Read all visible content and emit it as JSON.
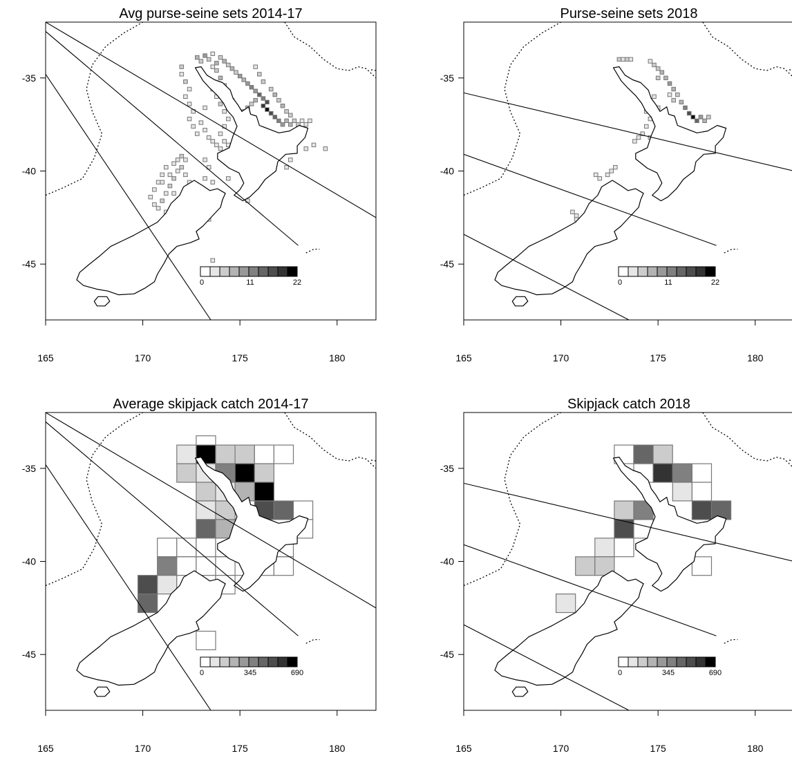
{
  "figure": {
    "panels": [
      {
        "id": "ps-sets-avg",
        "title": "Avg purse-seine sets 2014-17",
        "legend": {
          "min": "0",
          "mid": "11",
          "max": "22"
        },
        "lines": [
          [
            [
              165.0,
              -32.0
            ],
            [
              182.0,
              -42.5
            ]
          ],
          [
            [
              165.0,
              -32.5
            ],
            [
              178.0,
              -44.0
            ]
          ],
          [
            [
              165.0,
              -34.8
            ],
            [
              173.5,
              -48.0
            ]
          ]
        ]
      },
      {
        "id": "ps-sets-2018",
        "title": "Purse-seine sets 2018",
        "legend": {
          "min": "0",
          "mid": "11",
          "max": "22"
        },
        "lines": [
          [
            [
              165.0,
              -35.8
            ],
            [
              182.0,
              -40.0
            ]
          ],
          [
            [
              165.0,
              -39.1
            ],
            [
              178.0,
              -44.0
            ]
          ],
          [
            [
              165.0,
              -43.4
            ],
            [
              173.5,
              -48.0
            ]
          ]
        ]
      },
      {
        "id": "skj-catch-avg",
        "title": "Average skipjack catch 2014-17",
        "legend": {
          "min": "0",
          "mid": "345",
          "max": "690"
        },
        "lines": [
          [
            [
              165.0,
              -32.0
            ],
            [
              182.0,
              -42.5
            ]
          ],
          [
            [
              165.0,
              -32.5
            ],
            [
              178.0,
              -44.0
            ]
          ],
          [
            [
              165.0,
              -34.8
            ],
            [
              173.5,
              -48.0
            ]
          ]
        ]
      },
      {
        "id": "skj-catch-2018",
        "title": "Skipjack catch 2018",
        "legend": {
          "min": "0",
          "mid": "345",
          "max": "690"
        },
        "lines": [
          [
            [
              165.0,
              -35.8
            ],
            [
              182.0,
              -40.0
            ]
          ],
          [
            [
              165.0,
              -39.1
            ],
            [
              178.0,
              -44.0
            ]
          ],
          [
            [
              165.0,
              -43.4
            ],
            [
              173.5,
              -48.0
            ]
          ]
        ]
      }
    ],
    "x_ticks": [
      "165",
      "170",
      "175",
      "180"
    ],
    "y_ticks": [
      "-35",
      "-40",
      "-45"
    ],
    "map_extent": {
      "lon": [
        165,
        182
      ],
      "lat": [
        -48,
        -32
      ]
    },
    "grey_ramp": [
      "#ffffff",
      "#e6e6e6",
      "#cccccc",
      "#b3b3b3",
      "#999999",
      "#808080",
      "#666666",
      "#4d4d4d",
      "#333333",
      "#000000"
    ],
    "skipjack_avg_cells": [
      [
        173.25,
        -33.75,
        0
      ],
      [
        172.25,
        -34.25,
        1
      ],
      [
        173.25,
        -34.25,
        9
      ],
      [
        174.25,
        -34.25,
        2
      ],
      [
        175.25,
        -34.25,
        2
      ],
      [
        176.25,
        -34.25,
        0
      ],
      [
        177.25,
        -34.25,
        0
      ],
      [
        172.25,
        -35.25,
        2
      ],
      [
        173.25,
        -35.25,
        1
      ],
      [
        174.25,
        -35.25,
        5
      ],
      [
        175.25,
        -35.25,
        9
      ],
      [
        176.25,
        -35.25,
        2
      ],
      [
        173.25,
        -36.25,
        2
      ],
      [
        174.25,
        -36.25,
        1
      ],
      [
        175.25,
        -36.25,
        3
      ],
      [
        176.25,
        -36.25,
        9
      ],
      [
        173.25,
        -37.25,
        1
      ],
      [
        174.25,
        -37.25,
        2
      ],
      [
        176.25,
        -37.25,
        7
      ],
      [
        177.25,
        -37.25,
        6
      ],
      [
        178.25,
        -37.25,
        0
      ],
      [
        173.25,
        -38.25,
        6
      ],
      [
        174.25,
        -38.25,
        3
      ],
      [
        178.25,
        -38.25,
        0
      ],
      [
        171.25,
        -39.25,
        0
      ],
      [
        172.25,
        -39.25,
        0
      ],
      [
        173.25,
        -39.25,
        0
      ],
      [
        174.25,
        -39.25,
        0
      ],
      [
        177.25,
        -39.25,
        0
      ],
      [
        171.25,
        -40.25,
        5
      ],
      [
        172.25,
        -40.25,
        0
      ],
      [
        173.25,
        -40.25,
        0
      ],
      [
        174.25,
        -40.25,
        0
      ],
      [
        175.25,
        -40.25,
        0
      ],
      [
        176.25,
        -40.25,
        0
      ],
      [
        177.25,
        -40.25,
        0
      ],
      [
        170.25,
        -41.25,
        7
      ],
      [
        171.25,
        -41.25,
        1
      ],
      [
        172.25,
        -41.25,
        0
      ],
      [
        173.25,
        -41.25,
        0
      ],
      [
        174.25,
        -41.25,
        0
      ],
      [
        170.25,
        -42.25,
        6
      ],
      [
        171.25,
        -42.25,
        0
      ],
      [
        173.25,
        -44.25,
        0
      ]
    ],
    "skipjack_2018_cells": [
      [
        173.25,
        -34.25,
        0
      ],
      [
        174.25,
        -34.25,
        6
      ],
      [
        175.25,
        -34.25,
        2
      ],
      [
        174.25,
        -35.25,
        0
      ],
      [
        175.25,
        -35.25,
        8
      ],
      [
        176.25,
        -35.25,
        5
      ],
      [
        177.25,
        -35.25,
        0
      ],
      [
        176.25,
        -36.25,
        1
      ],
      [
        177.25,
        -36.25,
        0
      ],
      [
        173.25,
        -37.25,
        2
      ],
      [
        174.25,
        -37.25,
        5
      ],
      [
        177.25,
        -37.25,
        7
      ],
      [
        178.25,
        -37.25,
        6
      ],
      [
        173.25,
        -38.25,
        7
      ],
      [
        174.25,
        -38.25,
        0
      ],
      [
        172.25,
        -39.25,
        1
      ],
      [
        173.25,
        -39.25,
        0
      ],
      [
        171.25,
        -40.25,
        2
      ],
      [
        172.25,
        -40.25,
        2
      ],
      [
        177.25,
        -40.25,
        0
      ],
      [
        170.25,
        -42.25,
        1
      ]
    ],
    "ps_sets_avg_cells": [
      [
        172.8,
        -33.9,
        3
      ],
      [
        173.0,
        -34.1,
        2
      ],
      [
        173.2,
        -33.8,
        4
      ],
      [
        173.4,
        -34.0,
        2
      ],
      [
        173.6,
        -33.7,
        1
      ],
      [
        173.8,
        -34.2,
        3
      ],
      [
        174.0,
        -33.9,
        2
      ],
      [
        174.2,
        -34.1,
        3
      ],
      [
        174.4,
        -34.3,
        2
      ],
      [
        174.6,
        -34.5,
        3
      ],
      [
        174.8,
        -34.7,
        2
      ],
      [
        175.0,
        -34.9,
        4
      ],
      [
        175.2,
        -35.1,
        3
      ],
      [
        175.4,
        -35.3,
        4
      ],
      [
        175.6,
        -35.5,
        5
      ],
      [
        175.8,
        -35.7,
        4
      ],
      [
        176.0,
        -35.9,
        6
      ],
      [
        176.2,
        -36.1,
        5
      ],
      [
        176.4,
        -36.3,
        7
      ],
      [
        176.2,
        -36.5,
        8
      ],
      [
        176.4,
        -36.7,
        9
      ],
      [
        176.6,
        -36.9,
        7
      ],
      [
        176.8,
        -37.1,
        6
      ],
      [
        177.0,
        -37.3,
        5
      ],
      [
        177.2,
        -37.5,
        4
      ],
      [
        177.4,
        -37.3,
        3
      ],
      [
        177.6,
        -37.5,
        3
      ],
      [
        177.8,
        -37.3,
        2
      ],
      [
        178.0,
        -37.5,
        2
      ],
      [
        178.2,
        -37.3,
        1
      ],
      [
        178.4,
        -37.5,
        1
      ],
      [
        178.6,
        -37.3,
        1
      ],
      [
        175.8,
        -36.2,
        3
      ],
      [
        175.6,
        -36.4,
        2
      ],
      [
        175.4,
        -36.6,
        3
      ],
      [
        175.2,
        -36.8,
        2
      ],
      [
        175.0,
        -37.0,
        2
      ],
      [
        174.8,
        -36.6,
        2
      ],
      [
        174.6,
        -36.2,
        3
      ],
      [
        174.4,
        -35.8,
        2
      ],
      [
        174.2,
        -35.4,
        2
      ],
      [
        174.0,
        -35.0,
        3
      ],
      [
        173.8,
        -34.6,
        2
      ],
      [
        173.6,
        -34.4,
        1
      ],
      [
        173.4,
        -35.2,
        1
      ],
      [
        173.6,
        -35.6,
        2
      ],
      [
        173.8,
        -36.0,
        1
      ],
      [
        174.0,
        -36.4,
        2
      ],
      [
        174.2,
        -36.8,
        1
      ],
      [
        174.4,
        -37.2,
        1
      ],
      [
        174.2,
        -37.6,
        1
      ],
      [
        174.0,
        -38.0,
        1
      ],
      [
        174.2,
        -38.4,
        1
      ],
      [
        174.4,
        -38.6,
        1
      ],
      [
        174.0,
        -38.8,
        1
      ],
      [
        173.8,
        -38.6,
        1
      ],
      [
        173.6,
        -38.4,
        1
      ],
      [
        173.4,
        -38.2,
        1
      ],
      [
        173.2,
        -37.8,
        1
      ],
      [
        173.0,
        -37.4,
        1
      ],
      [
        173.2,
        -36.6,
        1
      ],
      [
        176.6,
        -35.6,
        2
      ],
      [
        176.8,
        -35.9,
        3
      ],
      [
        177.0,
        -36.2,
        2
      ],
      [
        177.2,
        -36.5,
        3
      ],
      [
        177.4,
        -36.8,
        2
      ],
      [
        177.6,
        -37.0,
        2
      ],
      [
        176.0,
        -34.8,
        2
      ],
      [
        176.2,
        -35.2,
        2
      ],
      [
        175.8,
        -34.4,
        1
      ],
      [
        172.0,
        -34.4,
        2
      ],
      [
        172.0,
        -34.8,
        1
      ],
      [
        172.2,
        -35.2,
        2
      ],
      [
        172.4,
        -35.6,
        1
      ],
      [
        172.2,
        -36.0,
        1
      ],
      [
        172.4,
        -36.4,
        1
      ],
      [
        172.6,
        -36.8,
        1
      ],
      [
        172.4,
        -37.2,
        1
      ],
      [
        172.6,
        -37.6,
        1
      ],
      [
        172.8,
        -38.0,
        1
      ],
      [
        171.6,
        -39.6,
        1
      ],
      [
        171.8,
        -39.4,
        1
      ],
      [
        172.0,
        -39.2,
        2
      ],
      [
        172.2,
        -39.4,
        1
      ],
      [
        172.0,
        -39.8,
        2
      ],
      [
        171.8,
        -40.0,
        1
      ],
      [
        171.6,
        -40.4,
        2
      ],
      [
        171.4,
        -40.8,
        2
      ],
      [
        171.2,
        -41.2,
        1
      ],
      [
        171.0,
        -41.6,
        2
      ],
      [
        170.8,
        -42.0,
        1
      ],
      [
        171.2,
        -42.2,
        1
      ],
      [
        171.0,
        -40.6,
        1
      ],
      [
        171.4,
        -40.2,
        1
      ],
      [
        171.2,
        -39.8,
        1
      ],
      [
        171.0,
        -40.2,
        1
      ],
      [
        170.8,
        -40.6,
        1
      ],
      [
        170.6,
        -41.0,
        1
      ],
      [
        170.4,
        -41.4,
        1
      ],
      [
        170.6,
        -41.8,
        1
      ],
      [
        171.6,
        -41.2,
        1
      ],
      [
        171.8,
        -41.6,
        1
      ],
      [
        172.2,
        -40.2,
        1
      ],
      [
        172.4,
        -40.6,
        1
      ],
      [
        172.6,
        -41.0,
        1
      ],
      [
        173.2,
        -40.4,
        1
      ],
      [
        173.6,
        -40.6,
        1
      ],
      [
        173.2,
        -39.4,
        1
      ],
      [
        173.4,
        -39.8,
        1
      ],
      [
        174.4,
        -40.4,
        1
      ],
      [
        175.4,
        -41.6,
        1
      ],
      [
        173.4,
        -42.6,
        1
      ],
      [
        173.6,
        -44.8,
        1
      ],
      [
        177.2,
        -39.0,
        1
      ],
      [
        177.6,
        -39.4,
        1
      ],
      [
        177.4,
        -39.8,
        1
      ],
      [
        178.4,
        -38.8,
        1
      ],
      [
        178.8,
        -38.6,
        1
      ],
      [
        179.4,
        -38.8,
        1
      ]
    ],
    "ps_sets_2018_cells": [
      [
        173.0,
        -34.0,
        2
      ],
      [
        173.2,
        -34.0,
        1
      ],
      [
        173.4,
        -34.0,
        2
      ],
      [
        173.6,
        -34.0,
        1
      ],
      [
        174.6,
        -34.1,
        1
      ],
      [
        174.8,
        -34.3,
        2
      ],
      [
        175.0,
        -34.5,
        2
      ],
      [
        175.2,
        -34.7,
        3
      ],
      [
        175.0,
        -35.0,
        2
      ],
      [
        175.4,
        -35.0,
        3
      ],
      [
        175.6,
        -35.3,
        4
      ],
      [
        175.8,
        -35.6,
        3
      ],
      [
        176.0,
        -35.9,
        2
      ],
      [
        175.6,
        -35.9,
        1
      ],
      [
        175.8,
        -36.2,
        2
      ],
      [
        176.2,
        -36.3,
        3
      ],
      [
        176.4,
        -36.6,
        5
      ],
      [
        176.6,
        -36.9,
        7
      ],
      [
        176.8,
        -37.1,
        9
      ],
      [
        177.0,
        -37.3,
        6
      ],
      [
        177.2,
        -37.1,
        4
      ],
      [
        177.4,
        -37.3,
        3
      ],
      [
        177.6,
        -37.1,
        2
      ],
      [
        174.8,
        -36.0,
        1
      ],
      [
        174.6,
        -36.4,
        1
      ],
      [
        174.4,
        -36.8,
        1
      ],
      [
        174.6,
        -37.2,
        1
      ],
      [
        174.4,
        -37.6,
        1
      ],
      [
        174.2,
        -38.0,
        1
      ],
      [
        174.0,
        -38.2,
        1
      ],
      [
        173.8,
        -38.4,
        1
      ],
      [
        174.6,
        -38.2,
        1
      ],
      [
        175.0,
        -36.6,
        1
      ],
      [
        171.8,
        -40.2,
        1
      ],
      [
        172.0,
        -40.4,
        1
      ],
      [
        172.4,
        -40.2,
        1
      ],
      [
        172.6,
        -40.0,
        1
      ],
      [
        172.8,
        -39.8,
        1
      ],
      [
        170.8,
        -42.4,
        1
      ],
      [
        170.6,
        -42.2,
        1
      ],
      [
        170.8,
        -42.6,
        1
      ]
    ]
  }
}
